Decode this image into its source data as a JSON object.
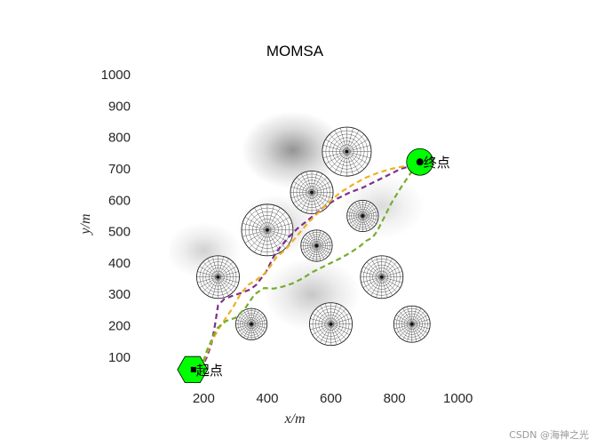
{
  "chart_data": {
    "type": "line",
    "title": "MOMSA",
    "xlabel": "x/m",
    "ylabel": "y/m",
    "xlim": [
      90,
      1040
    ],
    "ylim": [
      20,
      1040
    ],
    "xticks": [
      200,
      400,
      600,
      800,
      1000
    ],
    "yticks": [
      100,
      200,
      300,
      400,
      500,
      600,
      700,
      800,
      900,
      1000
    ],
    "xtick_labels": [
      "200",
      "400",
      "600",
      "800",
      "1000"
    ],
    "ytick_labels": [
      "100",
      "200",
      "300",
      "400",
      "500",
      "600",
      "700",
      "800",
      "900",
      "1000"
    ],
    "grid": false,
    "terrain_peaks": [
      {
        "x": 480,
        "y": 760,
        "strength": 0.42,
        "spread": 95
      },
      {
        "x": 430,
        "y": 520,
        "strength": 0.22,
        "spread": 75
      },
      {
        "x": 540,
        "y": 300,
        "strength": 0.22,
        "spread": 90
      },
      {
        "x": 200,
        "y": 440,
        "strength": 0.18,
        "spread": 70
      },
      {
        "x": 760,
        "y": 580,
        "strength": 0.14,
        "spread": 80
      }
    ],
    "obstacles": [
      {
        "x": 650,
        "y": 755,
        "r": 78
      },
      {
        "x": 540,
        "y": 625,
        "r": 68
      },
      {
        "x": 700,
        "y": 550,
        "r": 50
      },
      {
        "x": 400,
        "y": 505,
        "r": 82
      },
      {
        "x": 555,
        "y": 455,
        "r": 50
      },
      {
        "x": 245,
        "y": 355,
        "r": 68
      },
      {
        "x": 760,
        "y": 355,
        "r": 68
      },
      {
        "x": 350,
        "y": 205,
        "r": 50
      },
      {
        "x": 600,
        "y": 205,
        "r": 68
      },
      {
        "x": 855,
        "y": 205,
        "r": 58
      }
    ],
    "series": [
      {
        "color": "#7e2f8e",
        "x": [
          190,
          210,
          225,
          235,
          245,
          265,
          290,
          320,
          345,
          365,
          380,
          395,
          420,
          440,
          465,
          495,
          520,
          550,
          580,
          620,
          660,
          700,
          740,
          780,
          820,
          860,
          880
        ],
        "y": [
          60,
          100,
          145,
          200,
          265,
          285,
          295,
          305,
          315,
          330,
          350,
          370,
          420,
          450,
          480,
          510,
          530,
          555,
          580,
          605,
          625,
          640,
          660,
          680,
          700,
          712,
          722
        ]
      },
      {
        "color": "#edb120",
        "x": [
          190,
          205,
          225,
          250,
          270,
          290,
          315,
          340,
          365,
          390,
          410,
          430,
          455,
          480,
          505,
          530,
          560,
          590,
          630,
          670,
          710,
          750,
          790,
          830,
          860,
          880
        ],
        "y": [
          60,
          100,
          150,
          195,
          225,
          255,
          300,
          330,
          345,
          365,
          390,
          420,
          440,
          470,
          500,
          530,
          560,
          590,
          625,
          650,
          672,
          688,
          700,
          708,
          715,
          722
        ]
      },
      {
        "color": "#77ac30",
        "x": [
          190,
          210,
          240,
          270,
          300,
          330,
          360,
          390,
          420,
          450,
          480,
          510,
          540,
          570,
          600,
          630,
          660,
          690,
          710,
          730,
          745,
          765,
          790,
          820,
          850,
          880
        ],
        "y": [
          60,
          120,
          190,
          215,
          225,
          255,
          300,
          320,
          318,
          325,
          335,
          350,
          370,
          385,
          400,
          415,
          432,
          452,
          470,
          480,
          500,
          540,
          590,
          640,
          685,
          722
        ]
      }
    ],
    "start": {
      "x": 165,
      "y": 60,
      "label": "起点",
      "color": "#00ff00"
    },
    "end": {
      "x": 880,
      "y": 722,
      "label": "终点",
      "color": "#00ff00"
    }
  },
  "watermark": "CSDN @海神之光"
}
